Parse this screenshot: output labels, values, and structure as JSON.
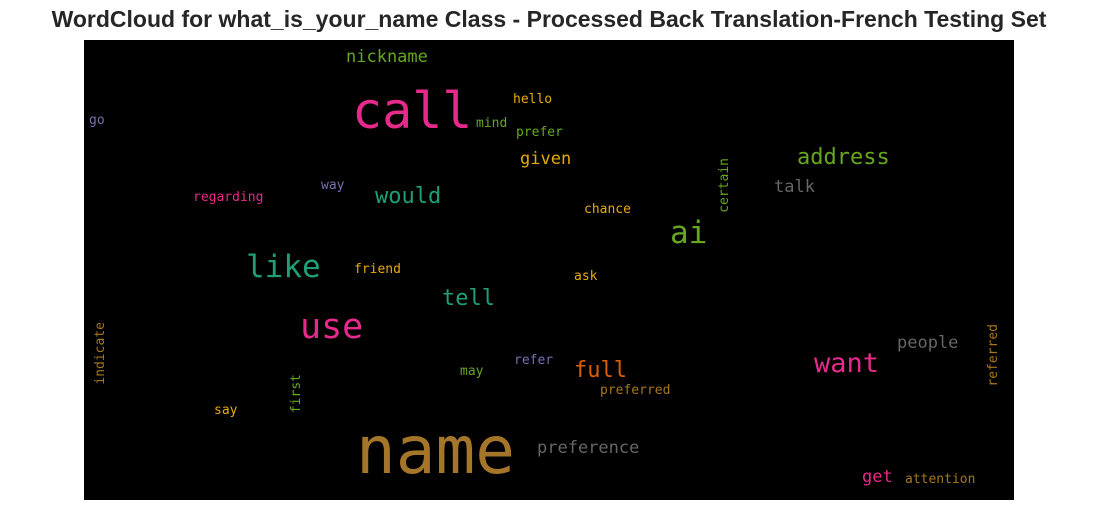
{
  "title": "WordCloud for what_is_your_name Class - Processed Back Translation-French Testing Set",
  "words": [
    {
      "text": "name",
      "color": "#a5752a"
    },
    {
      "text": "call",
      "color": "#e6298a"
    },
    {
      "text": "like",
      "color": "#1f9e78"
    },
    {
      "text": "use",
      "color": "#e6298a"
    },
    {
      "text": "ai",
      "color": "#66a71e"
    },
    {
      "text": "want",
      "color": "#e6298a"
    },
    {
      "text": "would",
      "color": "#1f9e78"
    },
    {
      "text": "address",
      "color": "#66a71e"
    },
    {
      "text": "tell",
      "color": "#1f9e78"
    },
    {
      "text": "full",
      "color": "#d95f02"
    },
    {
      "text": "nickname",
      "color": "#66a71e"
    },
    {
      "text": "given",
      "color": "#e6ab02"
    },
    {
      "text": "people",
      "color": "#666666"
    },
    {
      "text": "preference",
      "color": "#666666"
    },
    {
      "text": "get",
      "color": "#e6298a"
    },
    {
      "text": "talk",
      "color": "#666666"
    },
    {
      "text": "hello",
      "color": "#e6ab02"
    },
    {
      "text": "mind",
      "color": "#66a71e"
    },
    {
      "text": "prefer",
      "color": "#66a71e"
    },
    {
      "text": "go",
      "color": "#7570b3"
    },
    {
      "text": "regarding",
      "color": "#e6298a"
    },
    {
      "text": "way",
      "color": "#7570b3"
    },
    {
      "text": "chance",
      "color": "#e6ab02"
    },
    {
      "text": "certain",
      "color": "#66a71e"
    },
    {
      "text": "friend",
      "color": "#e6ab02"
    },
    {
      "text": "ask",
      "color": "#e6ab02"
    },
    {
      "text": "indicate",
      "color": "#a6761d"
    },
    {
      "text": "first",
      "color": "#66a71e"
    },
    {
      "text": "say",
      "color": "#e6ab02"
    },
    {
      "text": "may",
      "color": "#66a71e"
    },
    {
      "text": "refer",
      "color": "#7570b3"
    },
    {
      "text": "preferred",
      "color": "#a6761d"
    },
    {
      "text": "referred",
      "color": "#a6761d"
    },
    {
      "text": "attention",
      "color": "#a6761d"
    }
  ]
}
